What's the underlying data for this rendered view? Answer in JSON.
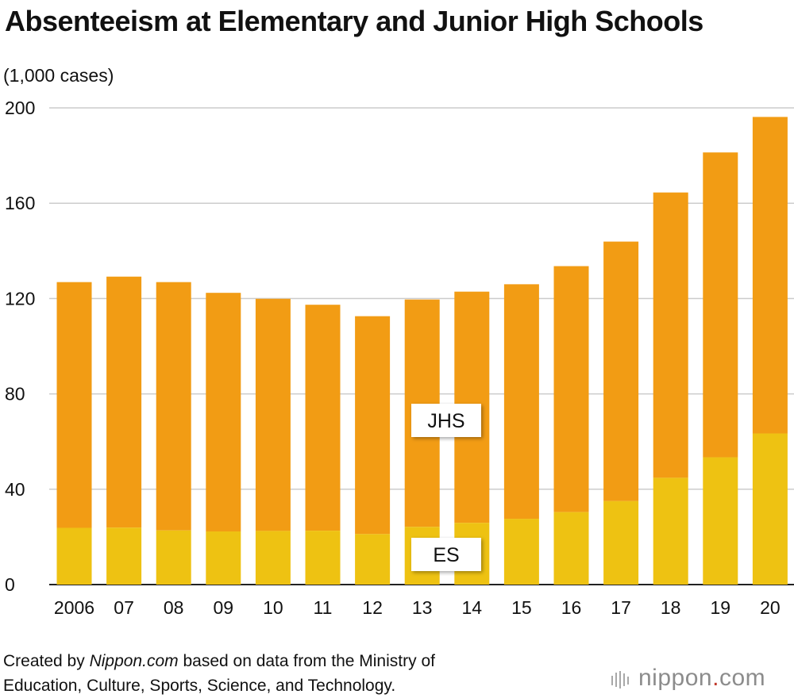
{
  "title": "Absenteeism at Elementary and Junior High Schools",
  "unit_label": "(1,000 cases)",
  "footer": {
    "prefix": "Created by ",
    "source_site": "Nippon.com",
    "middle": " based on data from the Ministry of",
    "line2": "Education, Culture, Sports, Science, and Technology."
  },
  "logo": {
    "text": "nippon",
    "dot": ".",
    "suffix": "com"
  },
  "colors": {
    "es": "#EEC212",
    "jhs": "#F29C14",
    "grid": "#cccccc",
    "axis": "#222222"
  },
  "chart_data": {
    "type": "bar",
    "stacked": true,
    "categories": [
      "2006",
      "07",
      "08",
      "09",
      "10",
      "11",
      "12",
      "13",
      "14",
      "15",
      "16",
      "17",
      "18",
      "19",
      "20"
    ],
    "series": [
      {
        "name": "ES",
        "values": [
          23.8,
          23.9,
          22.7,
          22.3,
          22.5,
          22.6,
          21.2,
          24.2,
          25.9,
          27.6,
          30.4,
          35.0,
          44.8,
          53.4,
          63.4
        ]
      },
      {
        "name": "JHS",
        "values": [
          103.1,
          105.3,
          104.2,
          100.1,
          97.4,
          94.8,
          91.4,
          95.4,
          97.0,
          98.4,
          103.2,
          108.9,
          119.7,
          127.9,
          132.8
        ]
      }
    ],
    "ylim": [
      0,
      200
    ],
    "yticks": [
      0,
      40,
      80,
      120,
      160,
      200
    ],
    "grid": true,
    "series_labels_inline": true
  }
}
